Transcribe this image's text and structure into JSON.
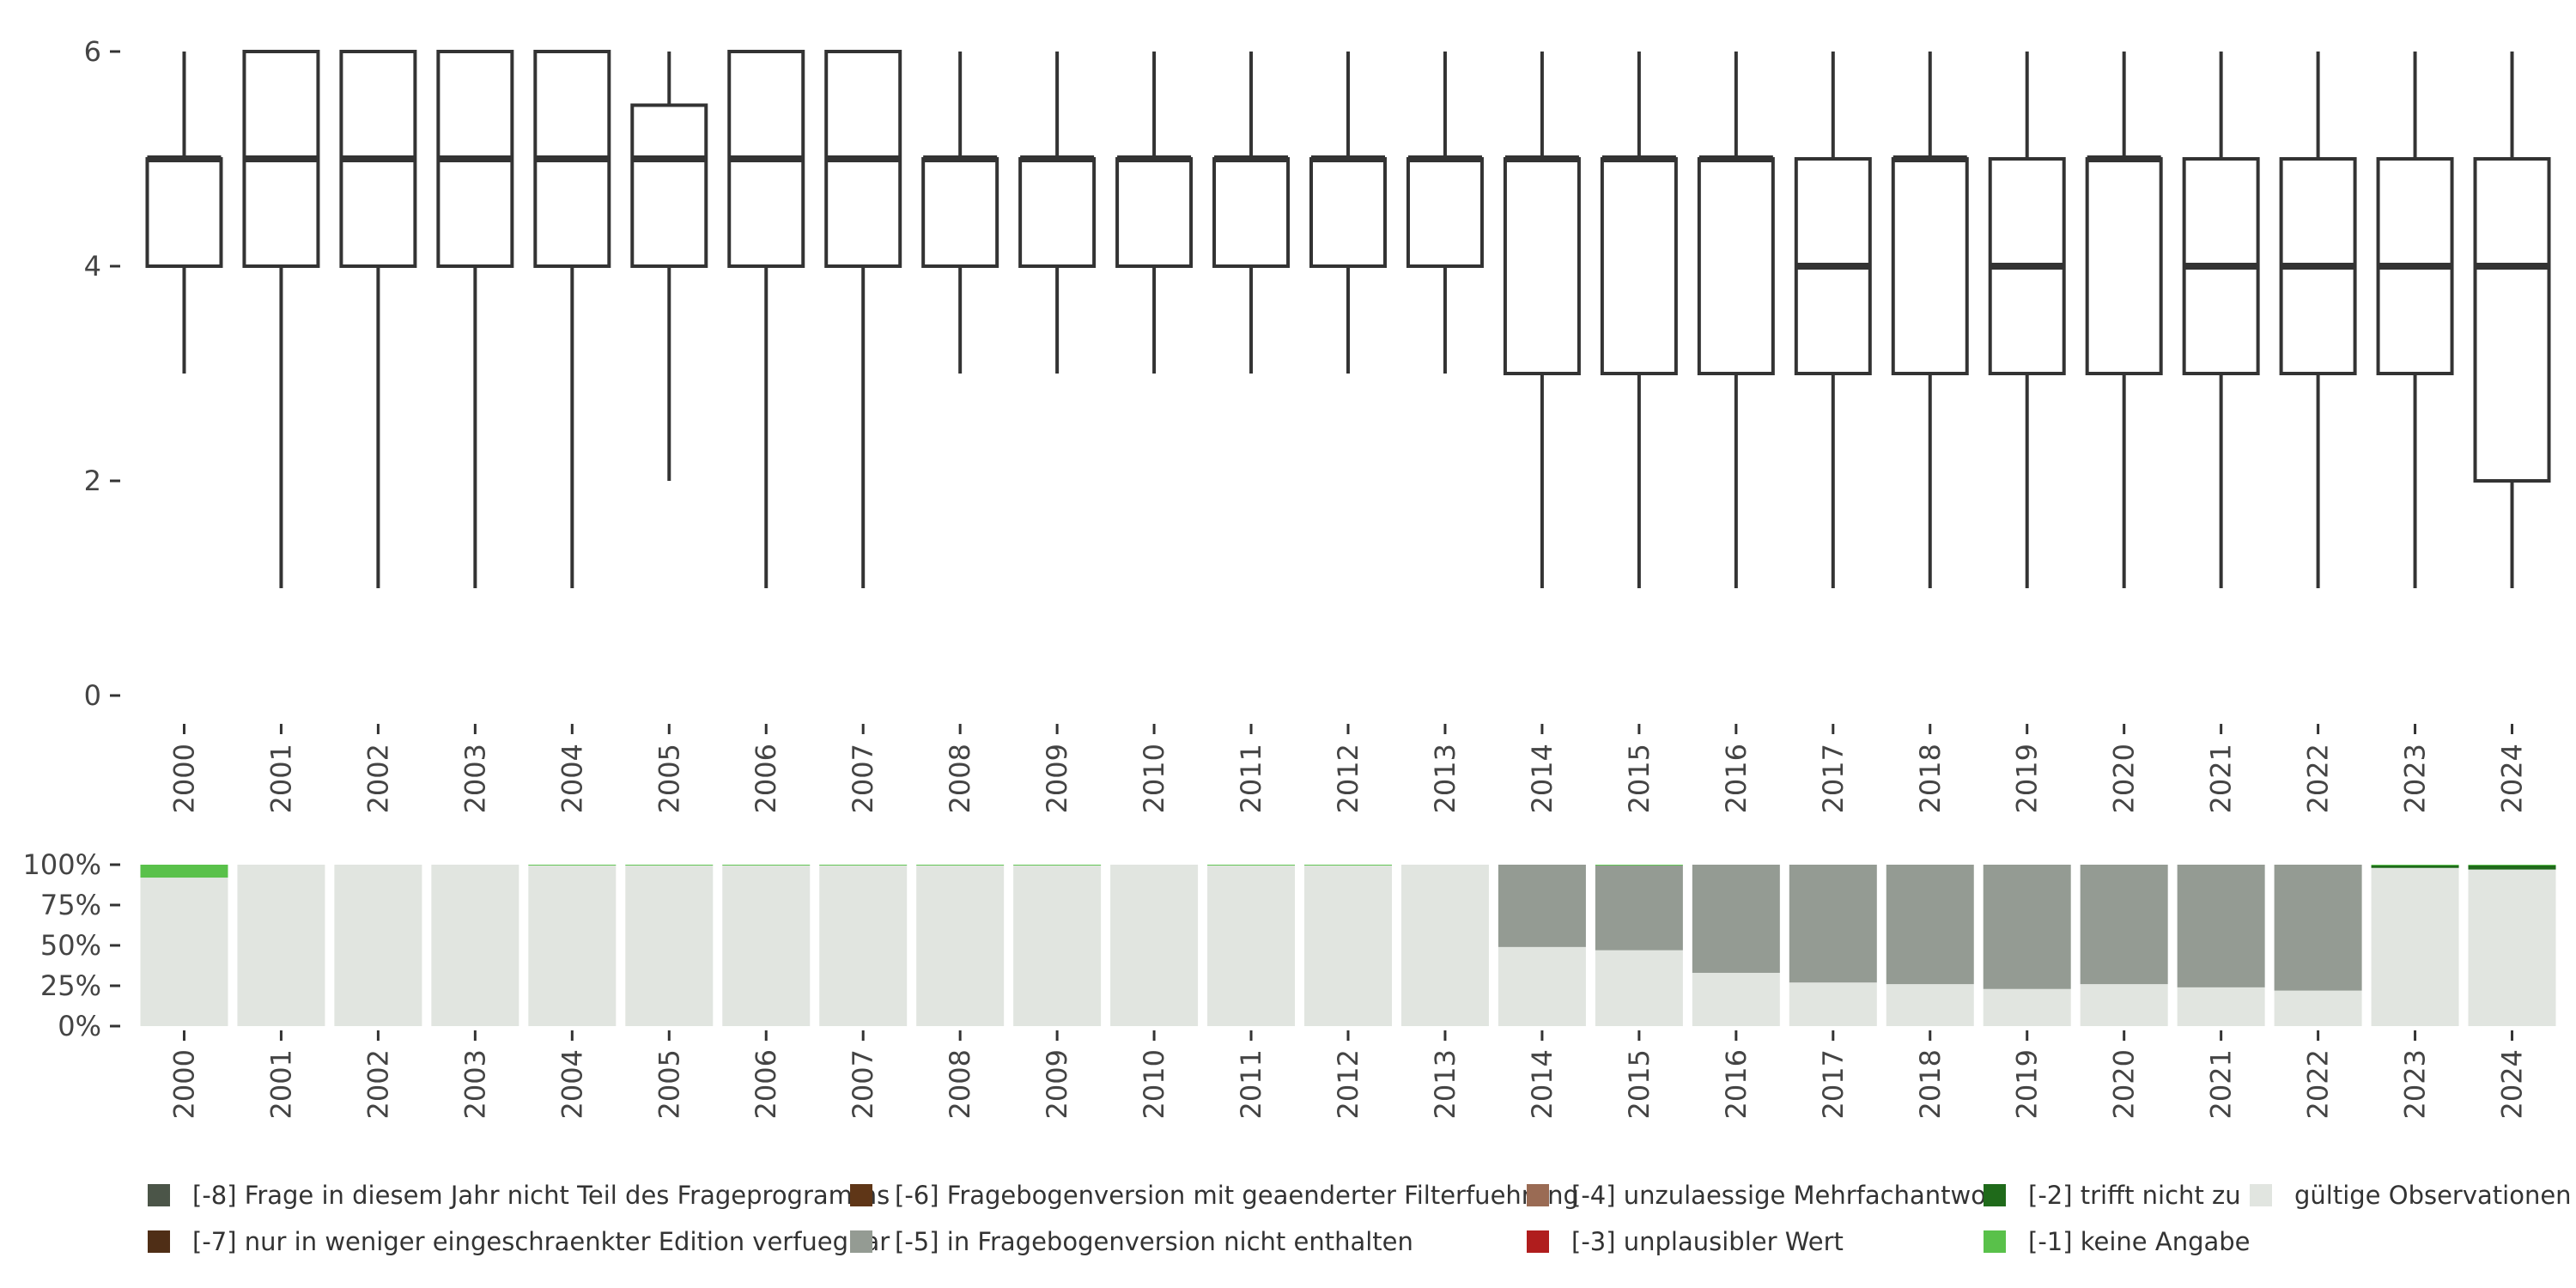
{
  "chart_data": [
    {
      "type": "box",
      "categories": [
        "2000",
        "2001",
        "2002",
        "2003",
        "2004",
        "2005",
        "2006",
        "2007",
        "2008",
        "2009",
        "2010",
        "2011",
        "2012",
        "2013",
        "2014",
        "2015",
        "2016",
        "2017",
        "2018",
        "2019",
        "2020",
        "2021",
        "2022",
        "2023",
        "2024"
      ],
      "boxes": [
        {
          "min": 3,
          "q1": 4,
          "median": 5,
          "q3": 5,
          "max": 6
        },
        {
          "min": 1,
          "q1": 4,
          "median": 5,
          "q3": 6,
          "max": 6
        },
        {
          "min": 1,
          "q1": 4,
          "median": 5,
          "q3": 6,
          "max": 6
        },
        {
          "min": 1,
          "q1": 4,
          "median": 5,
          "q3": 6,
          "max": 6
        },
        {
          "min": 1,
          "q1": 4,
          "median": 5,
          "q3": 6,
          "max": 6
        },
        {
          "min": 2,
          "q1": 4,
          "median": 5,
          "q3": 5.5,
          "max": 6
        },
        {
          "min": 1,
          "q1": 4,
          "median": 5,
          "q3": 6,
          "max": 6
        },
        {
          "min": 1,
          "q1": 4,
          "median": 5,
          "q3": 6,
          "max": 6
        },
        {
          "min": 3,
          "q1": 4,
          "median": 5,
          "q3": 5,
          "max": 6
        },
        {
          "min": 3,
          "q1": 4,
          "median": 5,
          "q3": 5,
          "max": 6
        },
        {
          "min": 3,
          "q1": 4,
          "median": 5,
          "q3": 5,
          "max": 6
        },
        {
          "min": 3,
          "q1": 4,
          "median": 5,
          "q3": 5,
          "max": 6
        },
        {
          "min": 3,
          "q1": 4,
          "median": 5,
          "q3": 5,
          "max": 6
        },
        {
          "min": 3,
          "q1": 4,
          "median": 5,
          "q3": 5,
          "max": 6
        },
        {
          "min": 1,
          "q1": 3,
          "median": 5,
          "q3": 5,
          "max": 6
        },
        {
          "min": 1,
          "q1": 3,
          "median": 5,
          "q3": 5,
          "max": 6
        },
        {
          "min": 1,
          "q1": 3,
          "median": 5,
          "q3": 5,
          "max": 6
        },
        {
          "min": 1,
          "q1": 3,
          "median": 4,
          "q3": 5,
          "max": 6
        },
        {
          "min": 1,
          "q1": 3,
          "median": 5,
          "q3": 5,
          "max": 6
        },
        {
          "min": 1,
          "q1": 3,
          "median": 4,
          "q3": 5,
          "max": 6
        },
        {
          "min": 1,
          "q1": 3,
          "median": 5,
          "q3": 5,
          "max": 6
        },
        {
          "min": 1,
          "q1": 3,
          "median": 4,
          "q3": 5,
          "max": 6
        },
        {
          "min": 1,
          "q1": 3,
          "median": 4,
          "q3": 5,
          "max": 6
        },
        {
          "min": 1,
          "q1": 3,
          "median": 4,
          "q3": 5,
          "max": 6
        },
        {
          "min": 1,
          "q1": 2,
          "median": 4,
          "q3": 5,
          "max": 6
        }
      ],
      "ylim": [
        0,
        6
      ],
      "yticks": [
        0,
        2,
        4,
        6
      ],
      "grid": false
    },
    {
      "type": "bar",
      "stacked": true,
      "percent": true,
      "categories": [
        "2000",
        "2001",
        "2002",
        "2003",
        "2004",
        "2005",
        "2006",
        "2007",
        "2008",
        "2009",
        "2010",
        "2011",
        "2012",
        "2013",
        "2014",
        "2015",
        "2016",
        "2017",
        "2018",
        "2019",
        "2020",
        "2021",
        "2022",
        "2023",
        "2024"
      ],
      "yticks": [
        "0%",
        "25%",
        "50%",
        "75%",
        "100%"
      ],
      "series": [
        {
          "name": "gültige Observationen",
          "color": "#e1e5e0",
          "values": [
            92,
            100,
            100,
            100,
            99.5,
            99.5,
            99.5,
            99.5,
            99.5,
            99.5,
            100,
            99.5,
            99.5,
            100,
            49,
            47,
            33,
            27,
            26,
            23,
            26,
            24,
            22,
            98,
            97
          ]
        },
        {
          "name": "[-5] in Fragebogenversion nicht enthalten",
          "color": "#949b93",
          "values": [
            0,
            0,
            0,
            0,
            0,
            0,
            0,
            0,
            0,
            0,
            0,
            0,
            0,
            0,
            51,
            52.5,
            67,
            73,
            74,
            77,
            74,
            76,
            78,
            0,
            0
          ]
        },
        {
          "name": "[-2] trifft nicht zu",
          "color": "#1f6a1a",
          "values": [
            0,
            0,
            0,
            0,
            0,
            0,
            0,
            0,
            0,
            0,
            0,
            0,
            0,
            0,
            0,
            0,
            0,
            0,
            0,
            0,
            0,
            0,
            0,
            1.5,
            2.5
          ]
        },
        {
          "name": "[-1] keine Angabe",
          "color": "#59c14a",
          "values": [
            8,
            0,
            0,
            0,
            0.5,
            0.5,
            0.5,
            0.5,
            0.5,
            0.5,
            0,
            0.5,
            0.5,
            0,
            0,
            0.5,
            0,
            0,
            0,
            0,
            0,
            0,
            0,
            0.5,
            0.5
          ]
        }
      ]
    }
  ],
  "legend": [
    {
      "label": "[-8] Frage in diesem Jahr nicht Teil des Frageprogramms",
      "color": "#4b5548"
    },
    {
      "label": "[-7] nur in weniger eingeschraenkter Edition verfuegbar",
      "color": "#4f2e16"
    },
    {
      "label": "[-6] Fragebogenversion mit geaenderter Filterfuehrung",
      "color": "#5f3617"
    },
    {
      "label": "[-5] in Fragebogenversion nicht enthalten",
      "color": "#949b93"
    },
    {
      "label": "[-4] unzulaessige Mehrfachantwort",
      "color": "#9a6b54"
    },
    {
      "label": "[-3] unplausibler Wert",
      "color": "#b01d1d"
    },
    {
      "label": "[-2] trifft nicht zu",
      "color": "#1f6a1a"
    },
    {
      "label": "[-1] keine Angabe",
      "color": "#59c14a"
    },
    {
      "label": "gültige Observationen",
      "color": "#e1e5e0"
    }
  ]
}
